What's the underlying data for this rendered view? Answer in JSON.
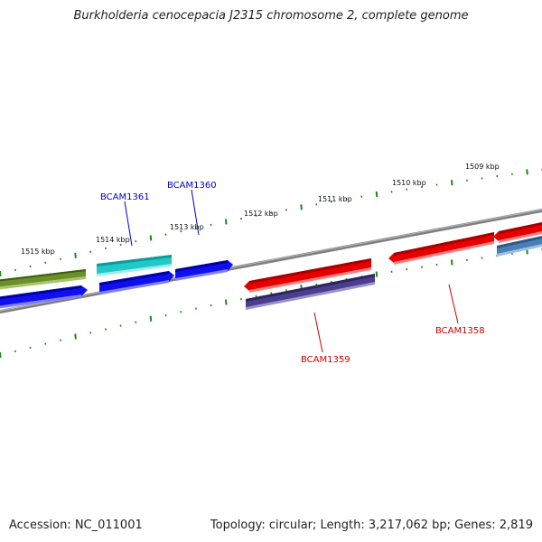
{
  "title": "Burkholderia cenocepacia J2315 chromosome 2, complete genome",
  "footer": {
    "accession": "Accession: NC_011001",
    "topology": "Topology: circular; Length: 3,217,062 bp; Genes: 2,819"
  },
  "scale": {
    "tick_labels": [
      "1515 kbp",
      "1514 kbp",
      "1513 kbp",
      "1512 kbp",
      "1511 kbp",
      "1510 kbp",
      "1509 kbp"
    ]
  },
  "genes": [
    {
      "id": "g-olive",
      "strand": "forward",
      "color": "#5b7f1f",
      "label": ""
    },
    {
      "id": "g-cyan",
      "strand": "forward",
      "color": "#22c8c8",
      "label": "BCAM1361"
    },
    {
      "id": "g-blue1",
      "strand": "reverse",
      "color": "#1010ee",
      "label": ""
    },
    {
      "id": "g-blue2",
      "strand": "reverse",
      "color": "#1010ee",
      "label": ""
    },
    {
      "id": "g-blue3",
      "strand": "reverse",
      "color": "#1010ee",
      "label": "BCAM1360"
    },
    {
      "id": "g-red1",
      "strand": "forward",
      "color": "#e60000",
      "label": ""
    },
    {
      "id": "g-purple",
      "strand": "reverse",
      "color": "#4a3f8c",
      "label": "BCAM1359"
    },
    {
      "id": "g-red2",
      "strand": "forward",
      "color": "#e60000",
      "label": "BCAM1358"
    },
    {
      "id": "g-red3",
      "strand": "forward",
      "color": "#e60000",
      "label": ""
    },
    {
      "id": "g-steel",
      "strand": "reverse",
      "color": "#4a7fb5",
      "label": ""
    }
  ],
  "label_colors": {
    "blue_genes": "#0000cc",
    "red_genes": "#cc0000"
  },
  "backbone_color": "#808080",
  "tick_color": "#1a8a1a"
}
